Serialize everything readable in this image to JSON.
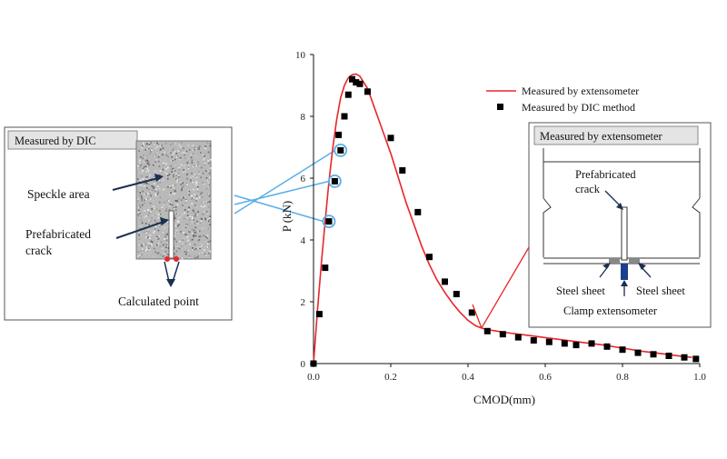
{
  "chart_data": {
    "type": "scatter",
    "xlabel": "CMOD(mm)",
    "ylabel": "P (kN)",
    "xlim": [
      0,
      1.0
    ],
    "ylim": [
      0,
      10
    ],
    "xticks": [
      "0.0",
      "0.2",
      "0.4",
      "0.6",
      "0.8",
      "1.0"
    ],
    "yticks": [
      "0",
      "2",
      "4",
      "6",
      "8",
      "10"
    ],
    "grid": false,
    "legend_position": "top-right",
    "series": [
      {
        "name": "Measured by extensometer",
        "kind": "line",
        "color": "#e8262b",
        "x": [
          0,
          0.01,
          0.02,
          0.03,
          0.04,
          0.05,
          0.06,
          0.07,
          0.08,
          0.09,
          0.1,
          0.11,
          0.12,
          0.14,
          0.16,
          0.18,
          0.2,
          0.22,
          0.24,
          0.26,
          0.28,
          0.3,
          0.32,
          0.34,
          0.36,
          0.38,
          0.4,
          0.42,
          0.44,
          0.46,
          0.5,
          0.55,
          0.6,
          0.65,
          0.7,
          0.75,
          0.8,
          0.85,
          0.9,
          0.95,
          0.98
        ],
        "y": [
          0,
          1.7,
          3.2,
          4.6,
          5.9,
          7.0,
          7.9,
          8.6,
          9.0,
          9.25,
          9.35,
          9.37,
          9.3,
          8.9,
          8.2,
          7.5,
          6.8,
          6.0,
          5.2,
          4.5,
          3.8,
          3.2,
          2.7,
          2.3,
          1.95,
          1.65,
          1.4,
          1.22,
          1.13,
          1.08,
          1.0,
          0.92,
          0.84,
          0.76,
          0.68,
          0.6,
          0.5,
          0.4,
          0.32,
          0.24,
          0.2
        ]
      },
      {
        "name": "Measured by DIC method",
        "kind": "markers",
        "color": "#000000",
        "x": [
          0.0,
          0.015,
          0.03,
          0.04,
          0.055,
          0.065,
          0.07,
          0.08,
          0.09,
          0.1,
          0.11,
          0.12,
          0.14,
          0.2,
          0.23,
          0.27,
          0.3,
          0.34,
          0.37,
          0.41,
          0.45,
          0.49,
          0.53,
          0.57,
          0.61,
          0.65,
          0.68,
          0.72,
          0.76,
          0.8,
          0.84,
          0.88,
          0.92,
          0.96,
          0.99
        ],
        "y": [
          0.0,
          1.6,
          3.1,
          4.6,
          5.9,
          7.4,
          6.9,
          8.0,
          8.7,
          9.2,
          9.1,
          9.05,
          8.8,
          7.3,
          6.25,
          4.9,
          3.45,
          2.65,
          2.25,
          1.65,
          1.05,
          0.95,
          0.85,
          0.75,
          0.7,
          0.65,
          0.6,
          0.65,
          0.55,
          0.45,
          0.35,
          0.3,
          0.25,
          0.2,
          0.15
        ]
      }
    ],
    "circled_points": [
      {
        "x": 0.04,
        "y": 4.6
      },
      {
        "x": 0.055,
        "y": 5.9
      },
      {
        "x": 0.07,
        "y": 6.9
      }
    ],
    "highlight_color": "#5aaee8"
  },
  "insets": {
    "dic": {
      "title": "Measured by DIC",
      "speckle_label": "Speckle area",
      "crack_label_1": "Prefabricated",
      "crack_label_2": "crack",
      "calculated_label": "Calculated point",
      "marker_color": "#e8262b"
    },
    "extensometer": {
      "title": "Measured by extensometer",
      "crack_label_1": "Prefabricated",
      "crack_label_2": "crack",
      "steel_left": "Steel sheet",
      "steel_right": "Steel sheet",
      "clamp_label": "Clamp extensometer",
      "clamp_color": "#1a3f8f"
    }
  }
}
